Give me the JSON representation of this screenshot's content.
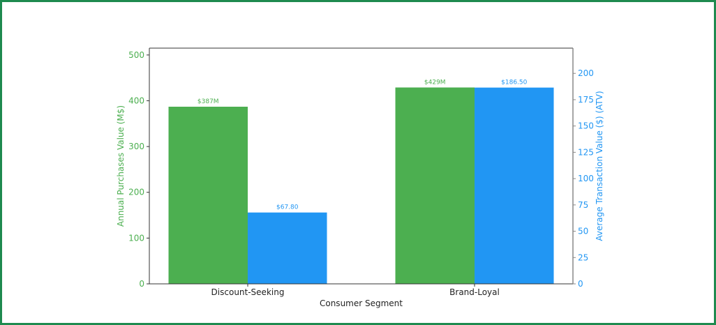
{
  "chart_data": {
    "type": "bar",
    "title": "",
    "xlabel": "Consumer Segment",
    "categories": [
      "Discount-Seeking",
      "Brand-Loyal"
    ],
    "series": [
      {
        "name": "Annual Purchases Value (M$)",
        "axis": "left",
        "color": "#4caf50",
        "values": [
          387,
          429
        ],
        "labels": [
          "$387M",
          "$429M"
        ]
      },
      {
        "name": "Average Transaction Value ($) (ATV)",
        "axis": "right",
        "color": "#2196f3",
        "values": [
          67.8,
          186.5
        ],
        "labels": [
          "$67.80",
          "$186.50"
        ]
      }
    ],
    "ylabel_left": "Annual Purchases Value (M$)",
    "ylabel_right": "Average Transaction Value ($) (ATV)",
    "ylim_left": [
      0,
      515
    ],
    "ylim_right": [
      0,
      224
    ],
    "yticks_left": [
      0,
      100,
      200,
      300,
      400,
      500
    ],
    "yticks_right": [
      0,
      25,
      50,
      75,
      100,
      125,
      150,
      175,
      200
    ],
    "grid": false,
    "legend": null
  },
  "colors": {
    "border": "#1e8a4f",
    "left_axis": "#4caf50",
    "right_axis": "#2196f3",
    "axis_line": "#333333"
  }
}
